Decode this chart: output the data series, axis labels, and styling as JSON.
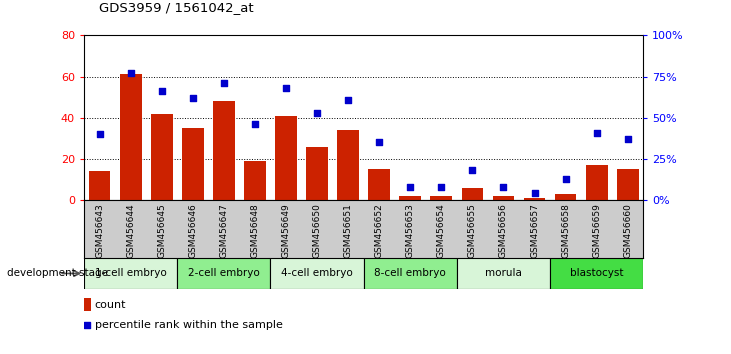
{
  "title": "GDS3959 / 1561042_at",
  "samples": [
    "GSM456643",
    "GSM456644",
    "GSM456645",
    "GSM456646",
    "GSM456647",
    "GSM456648",
    "GSM456649",
    "GSM456650",
    "GSM456651",
    "GSM456652",
    "GSM456653",
    "GSM456654",
    "GSM456655",
    "GSM456656",
    "GSM456657",
    "GSM456658",
    "GSM456659",
    "GSM456660"
  ],
  "counts": [
    14,
    61,
    42,
    35,
    48,
    19,
    41,
    26,
    34,
    15,
    2,
    2,
    6,
    2,
    1,
    3,
    17,
    15
  ],
  "percentiles": [
    40,
    77,
    66,
    62,
    71,
    46,
    68,
    53,
    61,
    35,
    8,
    8,
    18,
    8,
    4,
    13,
    41,
    37
  ],
  "stages": [
    {
      "label": "1-cell embryo",
      "start": 0,
      "end": 3,
      "color": "#d8f5d8"
    },
    {
      "label": "2-cell embryo",
      "start": 3,
      "end": 6,
      "color": "#90EE90"
    },
    {
      "label": "4-cell embryo",
      "start": 6,
      "end": 9,
      "color": "#d8f5d8"
    },
    {
      "label": "8-cell embryo",
      "start": 9,
      "end": 12,
      "color": "#90EE90"
    },
    {
      "label": "morula",
      "start": 12,
      "end": 15,
      "color": "#d8f5d8"
    },
    {
      "label": "blastocyst",
      "start": 15,
      "end": 18,
      "color": "#44DD44"
    }
  ],
  "ylim_left": [
    0,
    80
  ],
  "ylim_right": [
    0,
    100
  ],
  "yticks_left": [
    0,
    20,
    40,
    60,
    80
  ],
  "yticks_right": [
    0,
    25,
    50,
    75,
    100
  ],
  "bar_color": "#CC2200",
  "dot_color": "#0000CC",
  "plot_bg_color": "#ffffff",
  "xticklabel_bg_color": "#cccccc",
  "stage_border_color": "#000000",
  "grid_color": "#000000"
}
